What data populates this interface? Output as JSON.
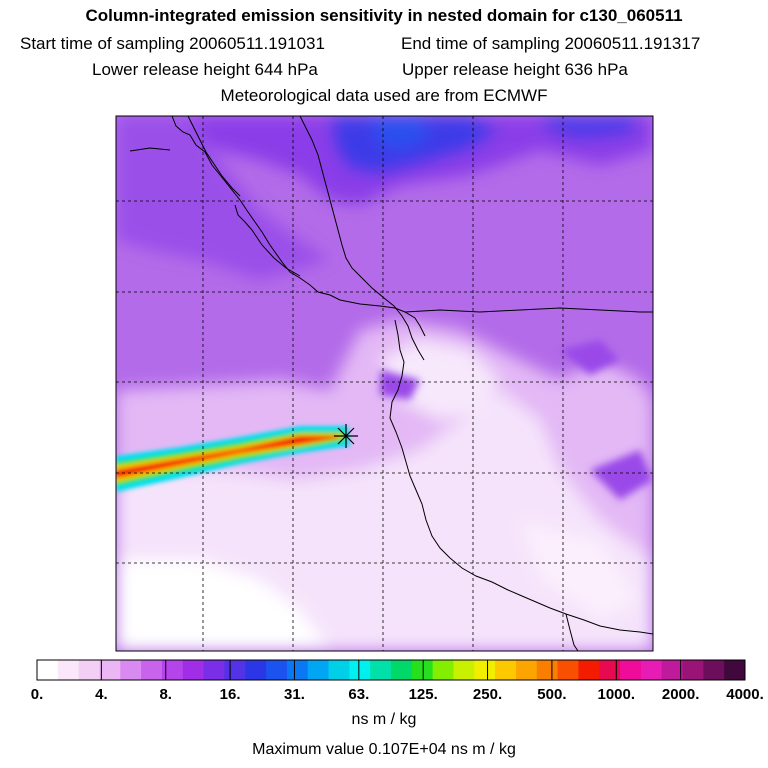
{
  "header": {
    "title": "Column-integrated emission sensitivity in nested domain for c130_060511",
    "start_label": "Start time of sampling 20060511.191031",
    "end_label": "End time of sampling 20060511.191317",
    "lower_label": "Lower release height  644 hPa",
    "upper_label": "Upper release height  636 hPa",
    "met_label": "Meteorological data used are from ECMWF"
  },
  "colorbar": {
    "ticks": [
      "0.",
      "4.",
      "8.",
      "16.",
      "31.",
      "63.",
      "125.",
      "250.",
      "500.",
      "1000.",
      "2000.",
      "4000."
    ],
    "units": "ns m / kg",
    "colors": [
      "#ffffff",
      "#fae8fa",
      "#f3cff6",
      "#eab6f3",
      "#d98af0",
      "#c864ec",
      "#b544ea",
      "#9f2ee6",
      "#7a2ee6",
      "#5432e6",
      "#2b36e6",
      "#1c52ee",
      "#0a78f2",
      "#00a6f4",
      "#00cfe8",
      "#00f0f0",
      "#00e0a8",
      "#00d86a",
      "#26e01e",
      "#84ee00",
      "#c8f000",
      "#f2ee00",
      "#fcc800",
      "#fca400",
      "#fa7e00",
      "#f85000",
      "#f41c00",
      "#e80a50",
      "#f00c9a",
      "#e61cb4",
      "#c01a9c",
      "#9a1478",
      "#6c0e5c",
      "#40083c"
    ],
    "max_value_label": "Maximum value  0.107E+04 ns m / kg"
  },
  "map": {
    "colors": {
      "bg": "#b36be9",
      "north_blue": "#4b3be8",
      "violet": "#8a3ee8",
      "light": "#e3b8f5",
      "very_light": "#f5e3fb",
      "white": "#ffffff",
      "gridline": "#000000"
    },
    "release_marker": "asterisk-icon"
  }
}
